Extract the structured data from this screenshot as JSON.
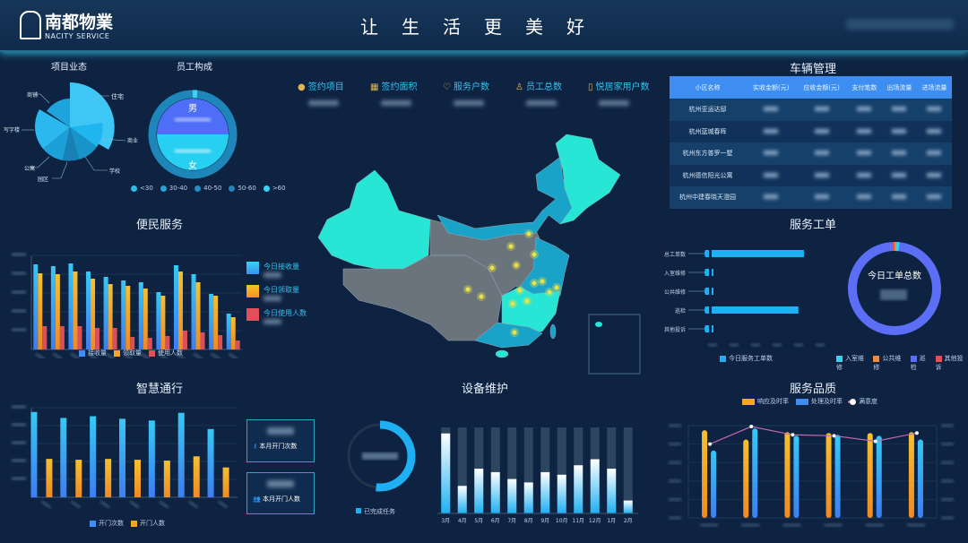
{
  "header": {
    "brand": "南都物業",
    "brand_sub": "NACITY SERVICE",
    "title": "让生活更美好"
  },
  "colors": {
    "bg": "#0d2341",
    "cyan": "#2fd6f2",
    "blue": "#3d8ef0",
    "orange": "#f5a623",
    "red": "#e0505a",
    "purple": "#5b6ef5",
    "map_gray": "#6a747d",
    "map_cyan": "#27e6d6",
    "map_blue": "#1aa3c8",
    "dot": "#e6e24a"
  },
  "panels": {
    "project": {
      "title": "项目业态",
      "labels": [
        "住宅",
        "商业",
        "学校",
        "园区",
        "公寓",
        "写字楼",
        "商铺"
      ]
    },
    "staff": {
      "title": "员工构成",
      "male": "男",
      "female": "女",
      "age_legend": [
        "<30",
        "30-40",
        "40-50",
        "50-60",
        ">60"
      ]
    },
    "convenience": {
      "title": "便民服务",
      "legend": [
        "接收量",
        "领取量",
        "使用人数"
      ],
      "side": [
        "今日接收量",
        "今日领取量",
        "今日使用人数"
      ]
    },
    "access": {
      "title": "智慧通行",
      "legend": [
        "开门次数",
        "开门人数"
      ],
      "cards": [
        "本月开门次数",
        "本月开门人数"
      ]
    },
    "equipment": {
      "title": "设备维护",
      "legend": "已完成任务"
    },
    "vehicle": {
      "title": "车辆管理",
      "columns": [
        "小区名称",
        "实收金额(元)",
        "应收金额(元)",
        "支付笔数",
        "出场流量",
        "进场流量"
      ],
      "rows": [
        "杭州亚运达邸",
        "杭州蓝城春晖",
        "杭州东方普罗一墅",
        "杭州德信阳光公寓",
        "杭州中建春晓天澄园"
      ]
    },
    "workorder": {
      "title": "服务工单",
      "categories": [
        "总工单数",
        "入室维修",
        "公共维修",
        "巡检",
        "其他投诉"
      ],
      "values": [
        500,
        5,
        3,
        470,
        4
      ],
      "legend": "今日服务工单数",
      "donut_title": "今日工单总数",
      "donut_legend": [
        "入室维修",
        "公共维修",
        "巡检",
        "其他投诉"
      ],
      "donut_values": [
        1,
        1,
        97,
        1
      ]
    },
    "quality": {
      "title": "服务品质",
      "legend": [
        "响应及时率",
        "处理及时率",
        "满意度"
      ]
    }
  },
  "kpis": [
    {
      "label": "签约项目",
      "icon": "location-icon"
    },
    {
      "label": "签约面积",
      "icon": "building-icon"
    },
    {
      "label": "服务户数",
      "icon": "diamond-icon"
    },
    {
      "label": "员工总数",
      "icon": "person-icon"
    },
    {
      "label": "悦居家用户数",
      "icon": "phone-icon"
    }
  ],
  "chart_data": [
    {
      "type": "bar",
      "name": "convenience",
      "series": [
        {
          "name": "接收量",
          "values": [
            95,
            93,
            96,
            87,
            81,
            77,
            75,
            64,
            94,
            84,
            62,
            40
          ]
        },
        {
          "name": "领取量",
          "values": [
            85,
            84,
            87,
            79,
            73,
            71,
            68,
            60,
            87,
            75,
            60,
            36
          ]
        },
        {
          "name": "使用人数",
          "values": [
            26,
            26,
            26,
            24,
            24,
            14,
            13,
            15,
            21,
            19,
            16,
            10
          ]
        }
      ],
      "ylim": [
        0,
        105
      ]
    },
    {
      "type": "bar",
      "name": "access",
      "series": [
        {
          "name": "开门次数",
          "values": [
            100,
            93,
            95,
            92,
            90,
            99,
            80
          ]
        },
        {
          "name": "开门人数",
          "values": [
            45,
            44,
            45,
            44,
            43,
            48,
            35
          ]
        }
      ],
      "ylim": [
        0,
        105
      ]
    },
    {
      "type": "bar",
      "name": "equipment",
      "categories": [
        "3月",
        "4月",
        "5月",
        "6月",
        "7月",
        "8月",
        "9月",
        "10月",
        "11月",
        "12月",
        "1月",
        "2月"
      ],
      "values": [
        93,
        32,
        52,
        48,
        40,
        36,
        48,
        45,
        56,
        63,
        52,
        15
      ],
      "ylim": [
        0,
        100
      ],
      "completed_fraction": 0.52
    },
    {
      "type": "bar",
      "name": "quality",
      "series": [
        {
          "name": "响应及时率",
          "values": [
            95,
            85,
            93,
            92,
            92,
            93
          ]
        },
        {
          "name": "处理及时率",
          "values": [
            73,
            97,
            89,
            90,
            89,
            85
          ]
        },
        {
          "name": "满意度",
          "type": "line",
          "values": [
            80,
            99,
            90,
            89,
            83,
            92
          ]
        }
      ],
      "ylim": [
        0,
        100
      ]
    }
  ]
}
